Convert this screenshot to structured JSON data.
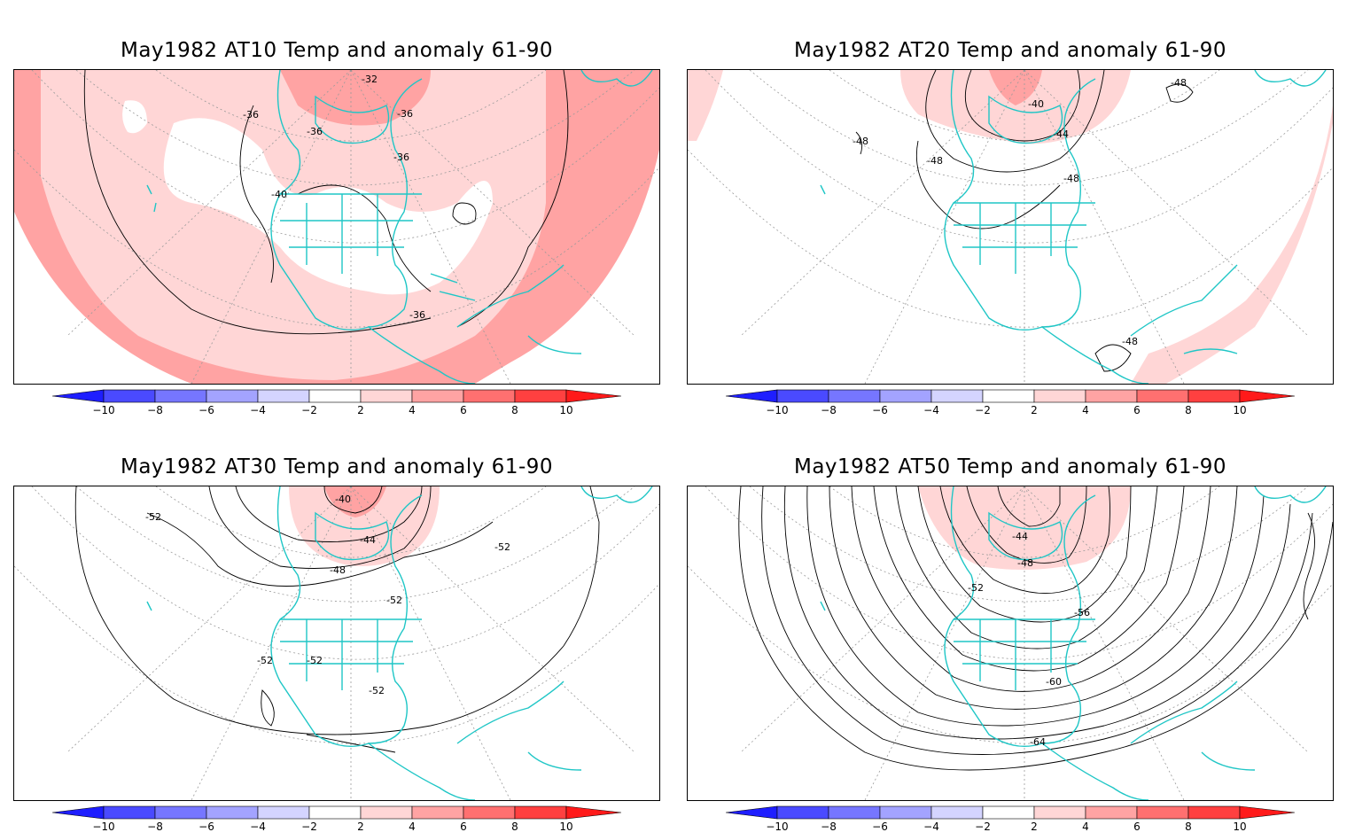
{
  "colorbar": {
    "ticks": [
      "−10",
      "−8",
      "−6",
      "−4",
      "−2",
      "2",
      "4",
      "6",
      "8",
      "10"
    ],
    "colors": [
      "#1e1eff",
      "#4a4aff",
      "#7676ff",
      "#a3a3ff",
      "#d4d4ff",
      "#ffffff",
      "#ffd6d6",
      "#ffa3a3",
      "#ff7070",
      "#ff4040",
      "#ff1a1a"
    ]
  },
  "colors": {
    "coast": "#1fc6c6",
    "contour": "#000000",
    "grid": "#9a9a9a",
    "anom_light": "#ffd6d6",
    "anom_mid": "#ffa3a3"
  },
  "panels": [
    {
      "title": "May1982 AT10 Temp and anomaly 61-90",
      "contour_labels": [
        "-32",
        "-36",
        "-36",
        "-36",
        "-36",
        "-40",
        "-36"
      ]
    },
    {
      "title": "May1982 AT20 Temp and anomaly 61-90",
      "contour_labels": [
        "-40",
        "-44",
        "-48",
        "-48",
        "-48",
        "-48",
        "-48"
      ]
    },
    {
      "title": "May1982 AT30 Temp and anomaly 61-90",
      "contour_labels": [
        "-40",
        "-44",
        "-48",
        "-52",
        "-52",
        "-52",
        "-52",
        "-52",
        "-52"
      ]
    },
    {
      "title": "May1982 AT50 Temp and anomaly 61-90",
      "contour_labels": [
        "-44",
        "-48",
        "-52",
        "-56",
        "-60",
        "-64"
      ]
    }
  ]
}
